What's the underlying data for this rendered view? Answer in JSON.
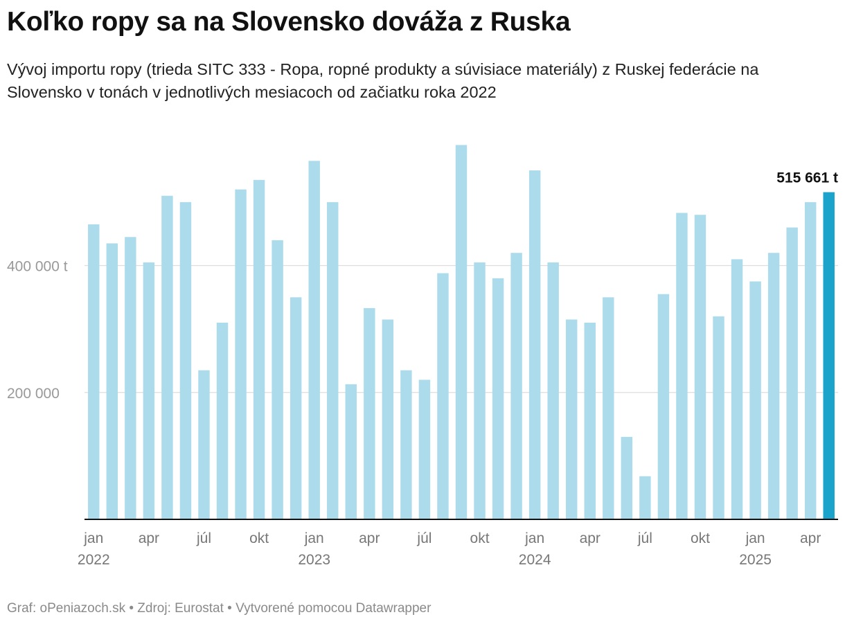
{
  "title": "Koľko ropy sa na Slovensko dováža z Ruska",
  "subtitle": "Vývoj importu ropy (trieda SITC 333 - Ropa, ropné produkty a súvisiace materiály) z Ruskej federácie na Slovensko v tonách v jednotlivých mesiacoch od začiatku roka 2022",
  "footer": "Graf: oPeniazoch.sk • Zdroj: Eurostat • Vytvorené pomocou Datawrapper",
  "colors": {
    "bar": "#acdcec",
    "highlight": "#1ba3cc",
    "grid": "#dddddd",
    "axis": "#111111",
    "tick_text": "#999999"
  },
  "chart_data": {
    "type": "bar",
    "title": "Koľko ropy sa na Slovensko dováža z Ruska",
    "xlabel": "",
    "ylabel": "",
    "unit": "t",
    "ylim": [
      0,
      600000
    ],
    "yticks": [
      200000,
      400000
    ],
    "ytick_labels": [
      "200 000",
      "400 000 t"
    ],
    "categories": [
      "2022-01",
      "2022-02",
      "2022-03",
      "2022-04",
      "2022-05",
      "2022-06",
      "2022-07",
      "2022-08",
      "2022-09",
      "2022-10",
      "2022-11",
      "2022-12",
      "2023-01",
      "2023-02",
      "2023-03",
      "2023-04",
      "2023-05",
      "2023-06",
      "2023-07",
      "2023-08",
      "2023-09",
      "2023-10",
      "2023-11",
      "2023-12",
      "2024-01",
      "2024-02",
      "2024-03",
      "2024-04",
      "2024-05",
      "2024-06",
      "2024-07",
      "2024-08",
      "2024-09",
      "2024-10",
      "2024-11",
      "2024-12",
      "2025-01",
      "2025-02",
      "2025-03",
      "2025-04",
      "2025-05"
    ],
    "values": [
      465000,
      435000,
      445000,
      405000,
      510000,
      500000,
      235000,
      310000,
      520000,
      535000,
      440000,
      350000,
      565000,
      500000,
      213000,
      333000,
      315000,
      235000,
      220000,
      388000,
      590000,
      405000,
      380000,
      420000,
      550000,
      405000,
      315000,
      310000,
      350000,
      130000,
      68000,
      355000,
      483000,
      480000,
      320000,
      410000,
      375000,
      420000,
      460000,
      500000,
      515661
    ],
    "highlight_index": 40,
    "highlight_label": "515 661 t",
    "x_tick_labels": [
      {
        "index": 0,
        "month": "jan",
        "year": "2022"
      },
      {
        "index": 3,
        "month": "apr",
        "year": ""
      },
      {
        "index": 6,
        "month": "júl",
        "year": ""
      },
      {
        "index": 9,
        "month": "okt",
        "year": ""
      },
      {
        "index": 12,
        "month": "jan",
        "year": "2023"
      },
      {
        "index": 15,
        "month": "apr",
        "year": ""
      },
      {
        "index": 18,
        "month": "júl",
        "year": ""
      },
      {
        "index": 21,
        "month": "okt",
        "year": ""
      },
      {
        "index": 24,
        "month": "jan",
        "year": "2024"
      },
      {
        "index": 27,
        "month": "apr",
        "year": ""
      },
      {
        "index": 30,
        "month": "júl",
        "year": ""
      },
      {
        "index": 33,
        "month": "okt",
        "year": ""
      },
      {
        "index": 36,
        "month": "jan",
        "year": "2025"
      },
      {
        "index": 39,
        "month": "apr",
        "year": ""
      }
    ]
  }
}
